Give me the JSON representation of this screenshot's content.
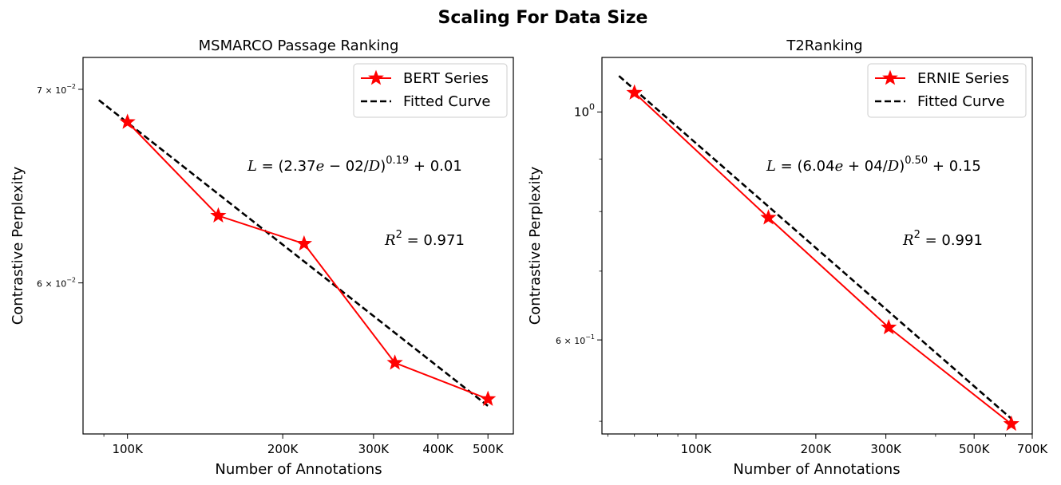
{
  "figure_title": "Scaling For Data Size",
  "colors": {
    "series": "#ff0000",
    "fit": "#000000",
    "axes": "#000000"
  },
  "chart_data": [
    {
      "type": "line",
      "title": "MSMARCO Passage Ranking",
      "xlabel": "Number of Annotations",
      "ylabel": "Contrastive Perplexity",
      "xscale": "log",
      "yscale": "log",
      "xlim": [
        82000,
        560000
      ],
      "ylim": [
        0.0532,
        0.0718
      ],
      "xticks": [
        {
          "value": 100000,
          "label": "100K"
        },
        {
          "value": 200000,
          "label": "200K"
        },
        {
          "value": 300000,
          "label": "300K"
        },
        {
          "value": 400000,
          "label": "400K"
        },
        {
          "value": 500000,
          "label": "500K"
        }
      ],
      "yticks": [
        {
          "value": 0.06,
          "base": "6 × 10",
          "exp": "−2"
        },
        {
          "value": 0.07,
          "base": "7 × 10",
          "exp": "−2"
        }
      ],
      "series": [
        {
          "name": "BERT Series",
          "marker": "star",
          "x": [
            100000,
            150000,
            220000,
            330000,
            500000
          ],
          "y": [
            0.0682,
            0.0633,
            0.0619,
            0.0563,
            0.0547
          ]
        },
        {
          "name": "Fitted Curve",
          "style": "dashed",
          "x": [
            88000,
            500000
          ],
          "y": [
            0.0694,
            0.0544
          ]
        }
      ],
      "legend_position": "upper-right",
      "annotations": {
        "formula_lhs": "L",
        "formula_mid": " = (2.37",
        "formula_e": "e",
        "formula_mid2": " − 02/",
        "formula_d": "D",
        "formula_close": ")",
        "formula_exp": "0.19",
        "formula_tail": " + 0.01",
        "r2_sym": "R",
        "r2_exp": "2",
        "r2_val": " = 0.971"
      }
    },
    {
      "type": "line",
      "title": "T2Ranking",
      "xlabel": "Number of Annotations",
      "ylabel": "Contrastive Perplexity",
      "xscale": "log",
      "yscale": "log",
      "xlim": [
        58000,
        700000
      ],
      "ylim": [
        0.486,
        1.13
      ],
      "xticks": [
        {
          "value": 100000,
          "label": "100K"
        },
        {
          "value": 200000,
          "label": "200K"
        },
        {
          "value": 300000,
          "label": "300K"
        },
        {
          "value": 500000,
          "label": "500K"
        },
        {
          "value": 700000,
          "label": "700K"
        }
      ],
      "yticks": [
        {
          "value": 0.6,
          "base": "6 × 10",
          "exp": "−1"
        },
        {
          "value": 1.0,
          "base": "10",
          "exp": "0"
        }
      ],
      "series": [
        {
          "name": "ERNIE Series",
          "marker": "star",
          "x": [
            70000,
            152000,
            305000,
            620000
          ],
          "y": [
            1.044,
            0.789,
            0.617,
            0.497
          ]
        },
        {
          "name": "Fitted Curve",
          "style": "dashed",
          "x": [
            64000,
            620000
          ],
          "y": [
            1.084,
            0.503
          ]
        }
      ],
      "legend_position": "upper-right",
      "annotations": {
        "formula_lhs": "L",
        "formula_mid": " = (6.04",
        "formula_e": "e",
        "formula_mid2": " + 04/",
        "formula_d": "D",
        "formula_close": ")",
        "formula_exp": "0.50",
        "formula_tail": " + 0.15",
        "r2_sym": "R",
        "r2_exp": "2",
        "r2_val": " = 0.991"
      }
    }
  ]
}
